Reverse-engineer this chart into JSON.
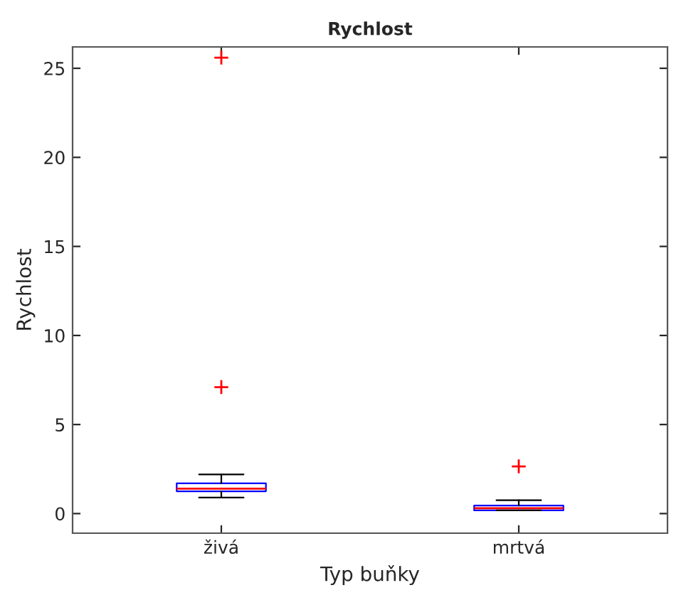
{
  "chart_data": {
    "type": "box",
    "title": "Rychlost",
    "xlabel": "Typ buňky",
    "ylabel": "Rychlost",
    "categories": [
      "živá",
      "mrtvá"
    ],
    "boxes": [
      {
        "low": 0.9,
        "q1": 1.25,
        "median": 1.4,
        "q3": 1.7,
        "high": 2.2,
        "outliers": [
          7.1,
          25.6
        ]
      },
      {
        "low": 0.18,
        "q1": 0.18,
        "median": 0.3,
        "q3": 0.45,
        "high": 0.75,
        "outliers": [
          2.65
        ]
      }
    ],
    "color": "#0000ff",
    "ylim": [
      -1.1,
      26.2
    ],
    "yticks": [
      0,
      5,
      10,
      15,
      20,
      25
    ],
    "grid": false,
    "legend": false
  }
}
